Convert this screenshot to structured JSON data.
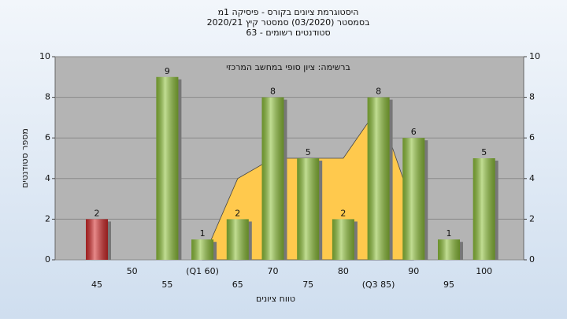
{
  "chart_data": {
    "type": "bar",
    "title": [
      "היסטוגרמת ציונים בקורס - פיסיקה 1מ",
      "בסמסטר (03/2020) סמסטר קיץ 2020/21",
      "63 - סטודנטים רשומים"
    ],
    "annotation": "ברשימה: ציון סופי במחשב המרכזי",
    "x_label": "טווח ציונים",
    "y_label": "מספר סטודנטים",
    "categories": [
      "45",
      "50",
      "55",
      "(Q1 60)",
      "65",
      "70",
      "75",
      "80",
      "(Q3 85)",
      "90",
      "95",
      "100"
    ],
    "values": [
      2,
      null,
      9,
      1,
      2,
      8,
      5,
      2,
      8,
      6,
      1,
      5
    ],
    "colors": [
      "#d42a2a",
      "#8fc23a",
      "#8fc23a",
      "#8fc23a",
      "#8fc23a",
      "#8fc23a",
      "#8fc23a",
      "#8fc23a",
      "#8fc23a",
      "#8fc23a",
      "#8fc23a",
      "#8fc23a"
    ],
    "area_values": [
      null,
      null,
      null,
      0,
      4,
      5,
      5,
      5,
      7.5,
      2.5,
      null,
      null
    ],
    "area_color": "#ffc94d",
    "ylim": [
      0,
      10
    ],
    "yticks": [
      0,
      2,
      4,
      6,
      8,
      10
    ],
    "grid": true
  }
}
